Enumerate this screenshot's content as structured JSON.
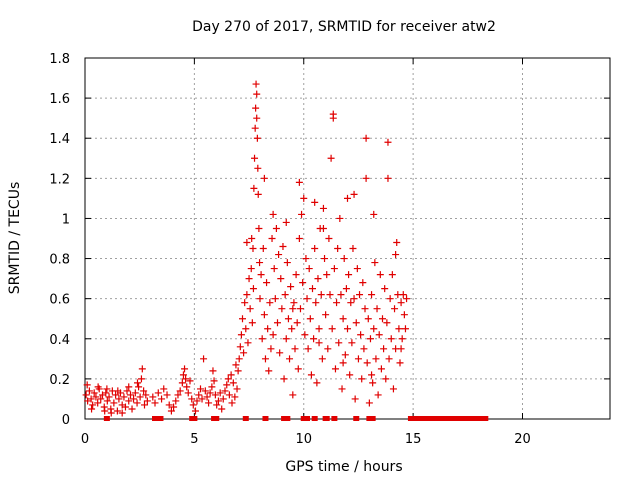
{
  "chart_data": {
    "type": "scatter",
    "title": "Day 270 of 2017, SRMTID for receiver atw2",
    "xlabel": "GPS time / hours",
    "ylabel": "SRMTID / TECUs",
    "xlim": [
      0,
      24
    ],
    "ylim": [
      0,
      1.8
    ],
    "xticks": [
      0,
      5,
      10,
      15,
      20
    ],
    "yticks": [
      0,
      0.2,
      0.4,
      0.6,
      0.8,
      1,
      1.2,
      1.4,
      1.6,
      1.8
    ],
    "xtick_labels": [
      "0",
      "5",
      "10",
      "15",
      "20"
    ],
    "ytick_labels": [
      "0",
      "0.2",
      "0.4",
      "0.6",
      "0.8",
      "1",
      "1.2",
      "1.4",
      "1.6",
      "1.8"
    ],
    "grid": true,
    "marker": "+",
    "color": "#e00000",
    "series": [
      {
        "name": "atw2",
        "points": [
          [
            0.05,
            0.12
          ],
          [
            0.12,
            0.09
          ],
          [
            0.2,
            0.14
          ],
          [
            0.28,
            0.1
          ],
          [
            0.35,
            0.07
          ],
          [
            0.42,
            0.13
          ],
          [
            0.5,
            0.11
          ],
          [
            0.58,
            0.08
          ],
          [
            0.65,
            0.15
          ],
          [
            0.72,
            0.1
          ],
          [
            0.8,
            0.12
          ],
          [
            0.88,
            0.06
          ],
          [
            0.95,
            0.13
          ],
          [
            1.02,
            0.09
          ],
          [
            1.1,
            0.11
          ],
          [
            1.18,
            0.05
          ],
          [
            1.25,
            0.14
          ],
          [
            1.32,
            0.08
          ],
          [
            1.4,
            0.12
          ],
          [
            1.48,
            0.04
          ],
          [
            1.55,
            0.1
          ],
          [
            1.62,
            0.13
          ],
          [
            1.7,
            0.07
          ],
          [
            1.78,
            0.11
          ],
          [
            1.85,
            0.06
          ],
          [
            1.92,
            0.14
          ],
          [
            2.0,
            0.09
          ],
          [
            2.08,
            0.12
          ],
          [
            2.15,
            0.05
          ],
          [
            2.22,
            0.1
          ],
          [
            2.3,
            0.13
          ],
          [
            2.38,
            0.08
          ],
          [
            2.45,
            0.16
          ],
          [
            2.52,
            0.11
          ],
          [
            2.58,
            0.2
          ],
          [
            2.62,
            0.25
          ],
          [
            2.68,
            0.14
          ],
          [
            2.72,
            0.07
          ],
          [
            2.78,
            0.12
          ],
          [
            2.85,
            0.09
          ],
          [
            0.1,
            0.17
          ],
          [
            0.6,
            0.16
          ],
          [
            1.0,
            0.15
          ],
          [
            1.5,
            0.14
          ],
          [
            2.0,
            0.16
          ],
          [
            2.4,
            0.18
          ],
          [
            1.2,
            0.03
          ],
          [
            0.3,
            0.05
          ],
          [
            0.9,
            0.04
          ],
          [
            1.7,
            0.03
          ],
          [
            3.1,
            0.11
          ],
          [
            3.2,
            0.08
          ],
          [
            3.35,
            0.13
          ],
          [
            3.5,
            0.1
          ],
          [
            3.6,
            0.15
          ],
          [
            3.75,
            0.12
          ],
          [
            3.85,
            0.07
          ],
          [
            3.95,
            0.04
          ],
          [
            4.05,
            0.06
          ],
          [
            4.15,
            0.09
          ],
          [
            4.25,
            0.12
          ],
          [
            4.35,
            0.14
          ],
          [
            4.45,
            0.18
          ],
          [
            4.5,
            0.22
          ],
          [
            4.55,
            0.25
          ],
          [
            4.6,
            0.2
          ],
          [
            4.65,
            0.16
          ],
          [
            4.72,
            0.13
          ],
          [
            4.8,
            0.19
          ],
          [
            4.88,
            0.1
          ],
          [
            4.95,
            0.07
          ],
          [
            5.05,
            0.04
          ],
          [
            5.12,
            0.09
          ],
          [
            5.2,
            0.12
          ],
          [
            5.28,
            0.15
          ],
          [
            5.35,
            0.1
          ],
          [
            5.42,
            0.3
          ],
          [
            5.5,
            0.14
          ],
          [
            5.58,
            0.11
          ],
          [
            5.65,
            0.08
          ],
          [
            5.72,
            0.13
          ],
          [
            5.8,
            0.16
          ],
          [
            5.85,
            0.24
          ],
          [
            5.9,
            0.19
          ],
          [
            5.96,
            0.12
          ],
          [
            6.02,
            0.07
          ],
          [
            6.1,
            0.09
          ],
          [
            6.18,
            0.13
          ],
          [
            6.25,
            0.05
          ],
          [
            6.32,
            0.1
          ],
          [
            6.4,
            0.14
          ],
          [
            6.48,
            0.17
          ],
          [
            6.55,
            0.2
          ],
          [
            6.6,
            0.12
          ],
          [
            6.68,
            0.22
          ],
          [
            6.72,
            0.08
          ],
          [
            6.78,
            0.18
          ],
          [
            6.85,
            0.11
          ],
          [
            6.9,
            0.27
          ],
          [
            6.95,
            0.15
          ],
          [
            7.0,
            0.24
          ],
          [
            7.05,
            0.3
          ],
          [
            7.1,
            0.36
          ],
          [
            7.15,
            0.42
          ],
          [
            7.2,
            0.5
          ],
          [
            7.25,
            0.33
          ],
          [
            7.3,
            0.58
          ],
          [
            7.35,
            0.45
          ],
          [
            7.4,
            0.62
          ],
          [
            7.45,
            0.38
          ],
          [
            7.5,
            0.7
          ],
          [
            7.55,
            0.55
          ],
          [
            7.6,
            0.75
          ],
          [
            7.62,
            0.9
          ],
          [
            7.65,
            0.48
          ],
          [
            7.68,
            0.85
          ],
          [
            7.7,
            0.65
          ],
          [
            7.72,
            1.15
          ],
          [
            7.75,
            1.3
          ],
          [
            7.78,
            1.45
          ],
          [
            7.8,
            1.55
          ],
          [
            7.82,
            1.67
          ],
          [
            7.85,
            1.5
          ],
          [
            7.88,
            1.4
          ],
          [
            7.9,
            1.25
          ],
          [
            7.92,
            1.12
          ],
          [
            7.95,
            0.95
          ],
          [
            7.98,
            0.78
          ],
          [
            8.0,
            0.6
          ],
          [
            8.05,
            0.72
          ],
          [
            8.1,
            0.4
          ],
          [
            8.15,
            0.85
          ],
          [
            8.2,
            0.52
          ],
          [
            8.25,
            0.3
          ],
          [
            8.3,
            0.68
          ],
          [
            8.35,
            0.45
          ],
          [
            8.4,
            0.24
          ],
          [
            8.45,
            0.58
          ],
          [
            8.5,
            0.35
          ],
          [
            8.55,
            0.9
          ],
          [
            8.6,
            0.42
          ],
          [
            8.65,
            0.75
          ],
          [
            8.7,
            0.6
          ],
          [
            8.75,
            0.95
          ],
          [
            8.8,
            0.48
          ],
          [
            8.85,
            0.82
          ],
          [
            8.9,
            0.33
          ],
          [
            8.95,
            0.7
          ],
          [
            9.0,
            0.55
          ],
          [
            9.05,
            0.86
          ],
          [
            9.1,
            0.2
          ],
          [
            9.15,
            0.62
          ],
          [
            9.2,
            0.4
          ],
          [
            9.25,
            0.78
          ],
          [
            9.3,
            0.5
          ],
          [
            9.35,
            0.3
          ],
          [
            9.4,
            0.66
          ],
          [
            9.45,
            0.45
          ],
          [
            9.5,
            0.12
          ],
          [
            9.55,
            0.58
          ],
          [
            9.6,
            0.35
          ],
          [
            9.65,
            0.72
          ],
          [
            9.7,
            0.48
          ],
          [
            9.75,
            0.25
          ],
          [
            9.8,
            0.9
          ],
          [
            9.85,
            0.55
          ],
          [
            9.9,
            1.02
          ],
          [
            9.95,
            0.68
          ],
          [
            10.0,
            1.1
          ],
          [
            10.05,
            0.42
          ],
          [
            10.1,
            0.8
          ],
          [
            10.15,
            0.6
          ],
          [
            10.2,
            0.35
          ],
          [
            10.25,
            0.75
          ],
          [
            10.3,
            0.5
          ],
          [
            10.35,
            0.22
          ],
          [
            10.4,
            0.65
          ],
          [
            10.45,
            0.4
          ],
          [
            10.5,
            0.85
          ],
          [
            10.55,
            0.58
          ],
          [
            10.6,
            0.18
          ],
          [
            10.65,
            0.7
          ],
          [
            10.7,
            0.45
          ],
          [
            10.75,
            0.95
          ],
          [
            10.8,
            0.62
          ],
          [
            10.85,
            0.3
          ],
          [
            10.9,
            1.05
          ],
          [
            10.95,
            0.8
          ],
          [
            11.0,
            0.52
          ],
          [
            11.05,
            0.72
          ],
          [
            11.1,
            0.35
          ],
          [
            11.15,
            0.9
          ],
          [
            11.2,
            0.62
          ],
          [
            11.25,
            1.3
          ],
          [
            11.3,
            0.45
          ],
          [
            11.35,
            1.5
          ],
          [
            11.4,
            0.75
          ],
          [
            11.45,
            0.25
          ],
          [
            11.5,
            0.58
          ],
          [
            11.55,
            0.85
          ],
          [
            11.6,
            0.38
          ],
          [
            11.65,
            1.0
          ],
          [
            11.7,
            0.62
          ],
          [
            11.75,
            0.15
          ],
          [
            11.8,
            0.5
          ],
          [
            11.85,
            0.8
          ],
          [
            11.9,
            0.32
          ],
          [
            11.95,
            0.65
          ],
          [
            12.0,
            0.45
          ],
          [
            12.05,
            0.72
          ],
          [
            12.1,
            0.22
          ],
          [
            12.15,
            0.58
          ],
          [
            12.2,
            0.38
          ],
          [
            12.25,
            0.85
          ],
          [
            12.3,
            0.6
          ],
          [
            12.35,
            0.1
          ],
          [
            12.4,
            0.48
          ],
          [
            12.45,
            0.75
          ],
          [
            12.5,
            0.3
          ],
          [
            12.55,
            0.62
          ],
          [
            12.6,
            0.42
          ],
          [
            12.65,
            0.2
          ],
          [
            12.7,
            0.68
          ],
          [
            12.75,
            0.35
          ],
          [
            12.8,
            0.55
          ],
          [
            12.85,
            1.4
          ],
          [
            12.9,
            0.28
          ],
          [
            12.95,
            0.5
          ],
          [
            13.0,
            0.08
          ],
          [
            13.05,
            0.4
          ],
          [
            13.1,
            0.62
          ],
          [
            13.15,
            0.18
          ],
          [
            13.2,
            0.45
          ],
          [
            13.25,
            0.78
          ],
          [
            13.3,
            0.3
          ],
          [
            13.35,
            0.55
          ],
          [
            13.4,
            0.12
          ],
          [
            13.45,
            0.42
          ],
          [
            13.5,
            0.72
          ],
          [
            13.55,
            0.25
          ],
          [
            13.6,
            0.5
          ],
          [
            13.65,
            0.35
          ],
          [
            13.7,
            0.65
          ],
          [
            13.75,
            0.2
          ],
          [
            13.8,
            0.48
          ],
          [
            13.85,
            1.38
          ],
          [
            13.9,
            0.3
          ],
          [
            13.95,
            0.6
          ],
          [
            14.0,
            0.4
          ],
          [
            14.05,
            0.72
          ],
          [
            14.1,
            0.15
          ],
          [
            14.15,
            0.55
          ],
          [
            14.2,
            0.35
          ],
          [
            14.25,
            0.88
          ],
          [
            14.3,
            0.62
          ],
          [
            14.35,
            0.45
          ],
          [
            14.4,
            0.28
          ],
          [
            14.45,
            0.58
          ],
          [
            14.5,
            0.4
          ],
          [
            14.55,
            0.62
          ],
          [
            14.6,
            0.52
          ],
          [
            14.65,
            0.45
          ],
          [
            14.7,
            0.6
          ],
          [
            7.85,
            1.62
          ],
          [
            8.2,
            1.2
          ],
          [
            9.8,
            1.18
          ],
          [
            10.5,
            1.08
          ],
          [
            11.35,
            1.52
          ],
          [
            12.3,
            1.12
          ],
          [
            12.85,
            1.2
          ],
          [
            13.85,
            1.2
          ],
          [
            9.2,
            0.98
          ],
          [
            10.9,
            0.95
          ],
          [
            8.6,
            1.02
          ],
          [
            12.0,
            1.1
          ],
          [
            13.2,
            1.02
          ],
          [
            14.2,
            0.82
          ],
          [
            7.4,
            0.88
          ],
          [
            9.5,
            0.55
          ],
          [
            10.7,
            0.38
          ],
          [
            11.8,
            0.28
          ],
          [
            13.1,
            0.22
          ],
          [
            14.45,
            0.35
          ]
        ]
      }
    ],
    "zero_markers_x": [
      1.0,
      3.2,
      3.3,
      3.45,
      4.9,
      5.0,
      5.9,
      6.0,
      7.35,
      8.25,
      9.1,
      9.25,
      10.0,
      10.15,
      10.5,
      11.0,
      11.05,
      11.4,
      12.4,
      13.0,
      13.05,
      13.15,
      14.9,
      15.1,
      15.3,
      15.5,
      15.7,
      15.9,
      16.1,
      16.3,
      16.5,
      16.7,
      16.9,
      17.1,
      17.3,
      17.5,
      17.7,
      17.9,
      18.1,
      18.3
    ]
  }
}
